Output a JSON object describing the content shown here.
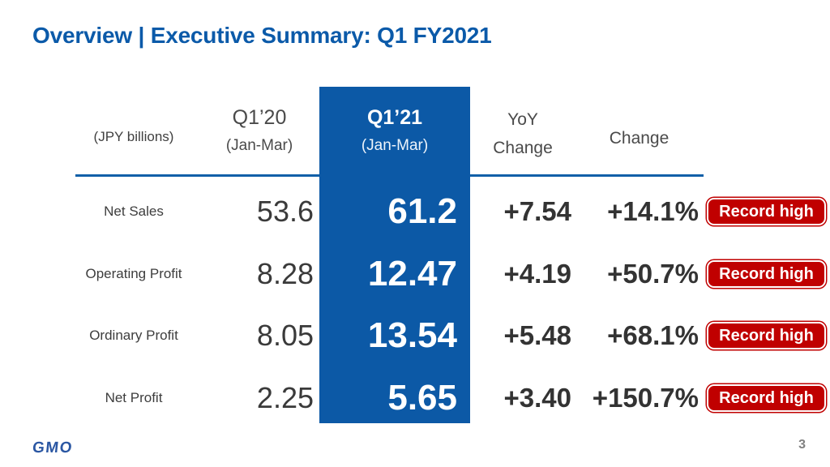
{
  "slide": {
    "title": "Overview | Executive Summary: Q1 FY2021",
    "logo_text": "GMO",
    "page_number": "3"
  },
  "colors": {
    "title_blue": "#0b5aa9",
    "accent_blue": "#0c59a6",
    "badge_red": "#c00000",
    "text_dark": "#3a3a3a",
    "logo_blue": "#2b57a3"
  },
  "table": {
    "unit_label": "(JPY billions)",
    "columns": {
      "prior": {
        "title": "Q1’20",
        "subtitle": "(Jan-Mar)"
      },
      "current": {
        "title": "Q1’21",
        "subtitle": "(Jan-Mar)"
      },
      "yoy": {
        "line1": "YoY",
        "line2": "Change"
      },
      "pct": {
        "title": "Change"
      }
    },
    "rows": [
      {
        "label": "Net Sales",
        "prior": "53.6",
        "current": "61.2",
        "yoy": "+7.54",
        "pct": "+14.1%",
        "badge": "Record high"
      },
      {
        "label": "Operating Profit",
        "prior": "8.28",
        "current": "12.47",
        "yoy": "+4.19",
        "pct": "+50.7%",
        "badge": "Record high"
      },
      {
        "label": "Ordinary Profit",
        "prior": "8.05",
        "current": "13.54",
        "yoy": "+5.48",
        "pct": "+68.1%",
        "badge": "Record high"
      },
      {
        "label": "Net Profit",
        "prior": "2.25",
        "current": "5.65",
        "yoy": "+3.40",
        "pct": "+150.7%",
        "badge": "Record high"
      }
    ]
  },
  "chart_data": {
    "type": "table",
    "title": "Overview | Executive Summary: Q1 FY2021",
    "unit": "JPY billions",
    "columns": [
      "(JPY billions)",
      "Q1’20 (Jan-Mar)",
      "Q1’21 (Jan-Mar)",
      "YoY Change",
      "Change"
    ],
    "rows": [
      [
        "Net Sales",
        53.6,
        61.2,
        "+7.54",
        "+14.1%",
        "Record high"
      ],
      [
        "Operating Profit",
        8.28,
        12.47,
        "+4.19",
        "+50.7%",
        "Record high"
      ],
      [
        "Ordinary Profit",
        8.05,
        13.54,
        "+5.48",
        "+68.1%",
        "Record high"
      ],
      [
        "Net Profit",
        2.25,
        5.65,
        "+3.40",
        "+150.7%",
        "Record high"
      ]
    ]
  }
}
